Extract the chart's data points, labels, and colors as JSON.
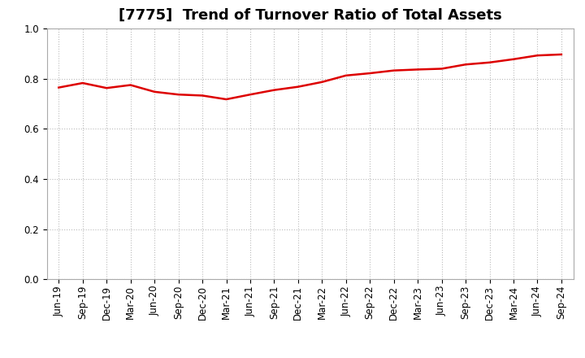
{
  "title": "[7775]  Trend of Turnover Ratio of Total Assets",
  "labels": [
    "Jun-19",
    "Sep-19",
    "Dec-19",
    "Mar-20",
    "Jun-20",
    "Sep-20",
    "Dec-20",
    "Mar-21",
    "Jun-21",
    "Sep-21",
    "Dec-21",
    "Mar-22",
    "Jun-22",
    "Sep-22",
    "Dec-22",
    "Mar-23",
    "Jun-23",
    "Sep-23",
    "Dec-23",
    "Mar-24",
    "Jun-24",
    "Sep-24"
  ],
  "values": [
    0.765,
    0.783,
    0.763,
    0.775,
    0.748,
    0.737,
    0.733,
    0.718,
    0.737,
    0.755,
    0.768,
    0.787,
    0.813,
    0.822,
    0.833,
    0.837,
    0.84,
    0.857,
    0.865,
    0.878,
    0.893,
    0.897
  ],
  "line_color": "#dd0000",
  "line_width": 1.8,
  "ylim": [
    0.0,
    1.0
  ],
  "yticks": [
    0.0,
    0.2,
    0.4,
    0.6,
    0.8,
    1.0
  ],
  "grid_color": "#bbbbbb",
  "background_color": "#ffffff",
  "title_fontsize": 13,
  "tick_fontsize": 8.5
}
